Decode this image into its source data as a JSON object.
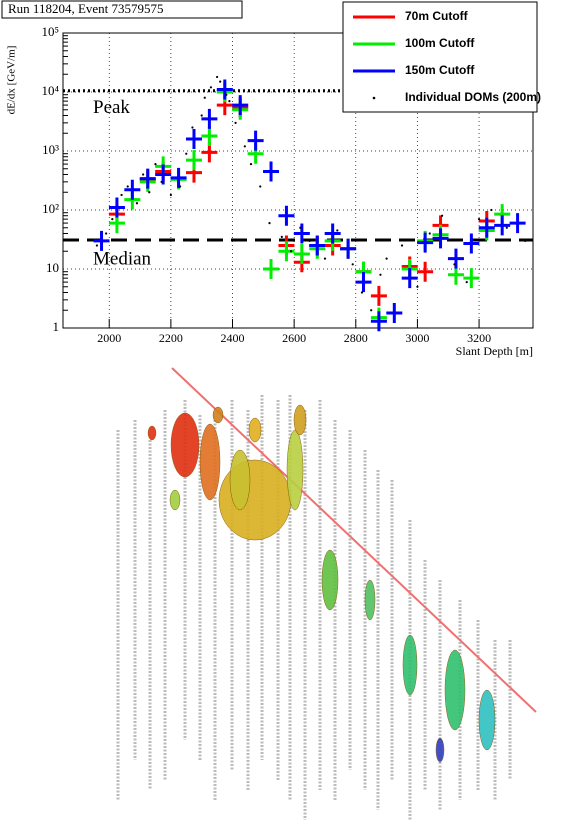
{
  "chart_data": {
    "type": "errorbar",
    "title": "Run 118204, Event 73579575",
    "ylabel": "dE/dx [GeV/m]",
    "xlabel": "Slant Depth [m]",
    "xlim": [
      1850,
      3375
    ],
    "xticks": [
      2000,
      2200,
      2400,
      2600,
      2800,
      3000,
      3200
    ],
    "ylim": [
      1,
      100000
    ],
    "yscale": "log",
    "yticks": [
      1,
      10,
      {
        "value": 100,
        "label": "10²"
      },
      {
        "value": 1000,
        "label": "10³"
      },
      {
        "value": 10000,
        "label": "10⁴"
      },
      {
        "value": 100000,
        "label": "10⁵"
      }
    ],
    "grid": true,
    "legend": "top-right",
    "x": [
      1975,
      2025,
      2075,
      2125,
      2175,
      2225,
      2275,
      2325,
      2375,
      2425,
      2475,
      2525,
      2575,
      2625,
      2675,
      2725,
      2775,
      2825,
      2875,
      2925,
      2975,
      3025,
      3075,
      3125,
      3175,
      3225,
      3275,
      3325
    ],
    "series": [
      {
        "name": "70m Cutoff",
        "color": "#ff0000",
        "marker": "cross",
        "values": [
          null,
          85,
          null,
          330,
          450,
          null,
          430,
          950,
          6000,
          5500,
          null,
          null,
          25,
          13,
          25,
          25,
          22,
          9,
          3.5,
          null,
          11,
          9,
          55,
          null,
          null,
          65,
          null,
          null
        ]
      },
      {
        "name": "100m Cutoff",
        "color": "#00ee00",
        "marker": "cross",
        "values": [
          null,
          60,
          150,
          300,
          550,
          330,
          700,
          1800,
          10000,
          5000,
          900,
          10,
          20,
          18,
          22,
          30,
          22,
          9,
          1.5,
          null,
          10,
          30,
          38,
          8,
          7,
          45,
          85,
          null
        ]
      },
      {
        "name": "150m Cutoff",
        "color": "#0000ff",
        "marker": "cross",
        "values": [
          30,
          110,
          220,
          340,
          400,
          350,
          1600,
          3500,
          11000,
          6000,
          1500,
          450,
          80,
          40,
          25,
          40,
          22,
          6,
          1.3,
          1.8,
          7,
          28,
          33,
          15,
          27,
          50,
          55,
          60
        ]
      },
      {
        "name": "Individual DOMs (200m)",
        "color": "#000000",
        "marker": "dot",
        "x": [
          1960,
          1990,
          2010,
          2040,
          2060,
          2090,
          2110,
          2130,
          2150,
          2170,
          2200,
          2230,
          2250,
          2270,
          2300,
          2310,
          2330,
          2350,
          2360,
          2380,
          2390,
          2410,
          2440,
          2460,
          2490,
          2520,
          2560,
          2590,
          2620,
          2650,
          2700,
          2740,
          2790,
          2820,
          2850,
          2880,
          2900,
          2950,
          3000,
          3040,
          3080,
          3120,
          3160,
          3200,
          3240,
          3290,
          3350
        ],
        "values": [
          25,
          40,
          70,
          180,
          250,
          130,
          400,
          200,
          600,
          300,
          180,
          250,
          900,
          2500,
          4000,
          8000,
          12000,
          18000,
          15000,
          9000,
          7000,
          3000,
          1200,
          600,
          250,
          60,
          35,
          20,
          50,
          30,
          15,
          45,
          12,
          4,
          2,
          8,
          15,
          25,
          5,
          40,
          80,
          12,
          6,
          70,
          100,
          50,
          30
        ]
      }
    ],
    "annotations": [
      {
        "text": "Peak",
        "value": 10500,
        "style": "dotted"
      },
      {
        "text": "Median",
        "value": 31,
        "style": "dashed"
      }
    ]
  }
}
